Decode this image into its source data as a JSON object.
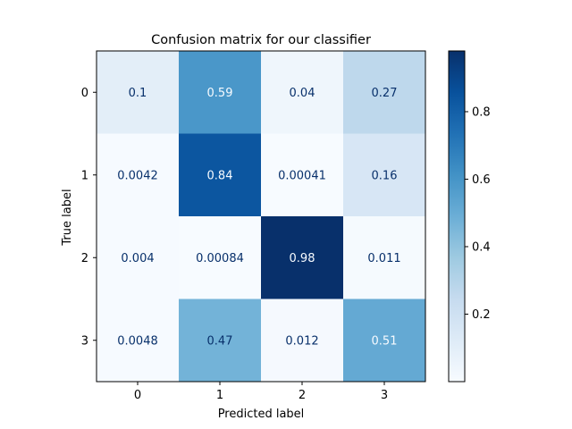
{
  "chart_data": {
    "type": "heatmap",
    "title": "Confusion matrix for our classifier",
    "xlabel": "Predicted label",
    "ylabel": "True label",
    "x_categories": [
      "0",
      "1",
      "2",
      "3"
    ],
    "y_categories": [
      "0",
      "1",
      "2",
      "3"
    ],
    "values": [
      [
        0.1,
        0.59,
        0.04,
        0.27
      ],
      [
        0.0042,
        0.84,
        0.00041,
        0.16
      ],
      [
        0.004,
        0.00084,
        0.98,
        0.011
      ],
      [
        0.0048,
        0.47,
        0.012,
        0.51
      ]
    ],
    "value_labels": [
      [
        "0.1",
        "0.59",
        "0.04",
        "0.27"
      ],
      [
        "0.0042",
        "0.84",
        "0.00041",
        "0.16"
      ],
      [
        "0.004",
        "0.00084",
        "0.98",
        "0.011"
      ],
      [
        "0.0048",
        "0.47",
        "0.012",
        "0.51"
      ]
    ],
    "colormap": "Blues",
    "colorbar": {
      "range": [
        0.0,
        0.98
      ],
      "ticks": [
        0.2,
        0.4,
        0.6,
        0.8
      ],
      "tick_labels": [
        "0.2",
        "0.4",
        "0.6",
        "0.8"
      ]
    },
    "colors": {
      "low": "#f7fbff",
      "high": "#08306b",
      "text_on_light": "#08306b",
      "text_on_dark": "#f7fbff"
    }
  }
}
